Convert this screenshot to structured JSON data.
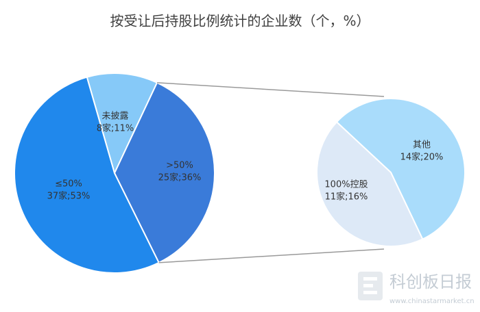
{
  "chart_data": {
    "type": "pie-of-pie",
    "title": "按受让后持股比例统计的企业数（个，%）",
    "categories": [
      "未披露",
      ">50%",
      "≤50%"
    ],
    "values": [
      8,
      25,
      37
    ],
    "value_labels": [
      "8家;11%",
      "25家;36%",
      "37家;53%"
    ],
    "colors": [
      "#86c9f8",
      "#3a7bd9",
      "#2088ec"
    ],
    "breakdown": {
      "categories": [
        "其他",
        "100%控股"
      ],
      "values": [
        14,
        11
      ],
      "value_labels": [
        "14家;20%",
        "11家;16%"
      ],
      "colors": [
        "#a9dcfb",
        "#dde9f7"
      ]
    },
    "watermark": {
      "name": "科创板日报",
      "url": "www.chinastarmarket.cn"
    }
  }
}
